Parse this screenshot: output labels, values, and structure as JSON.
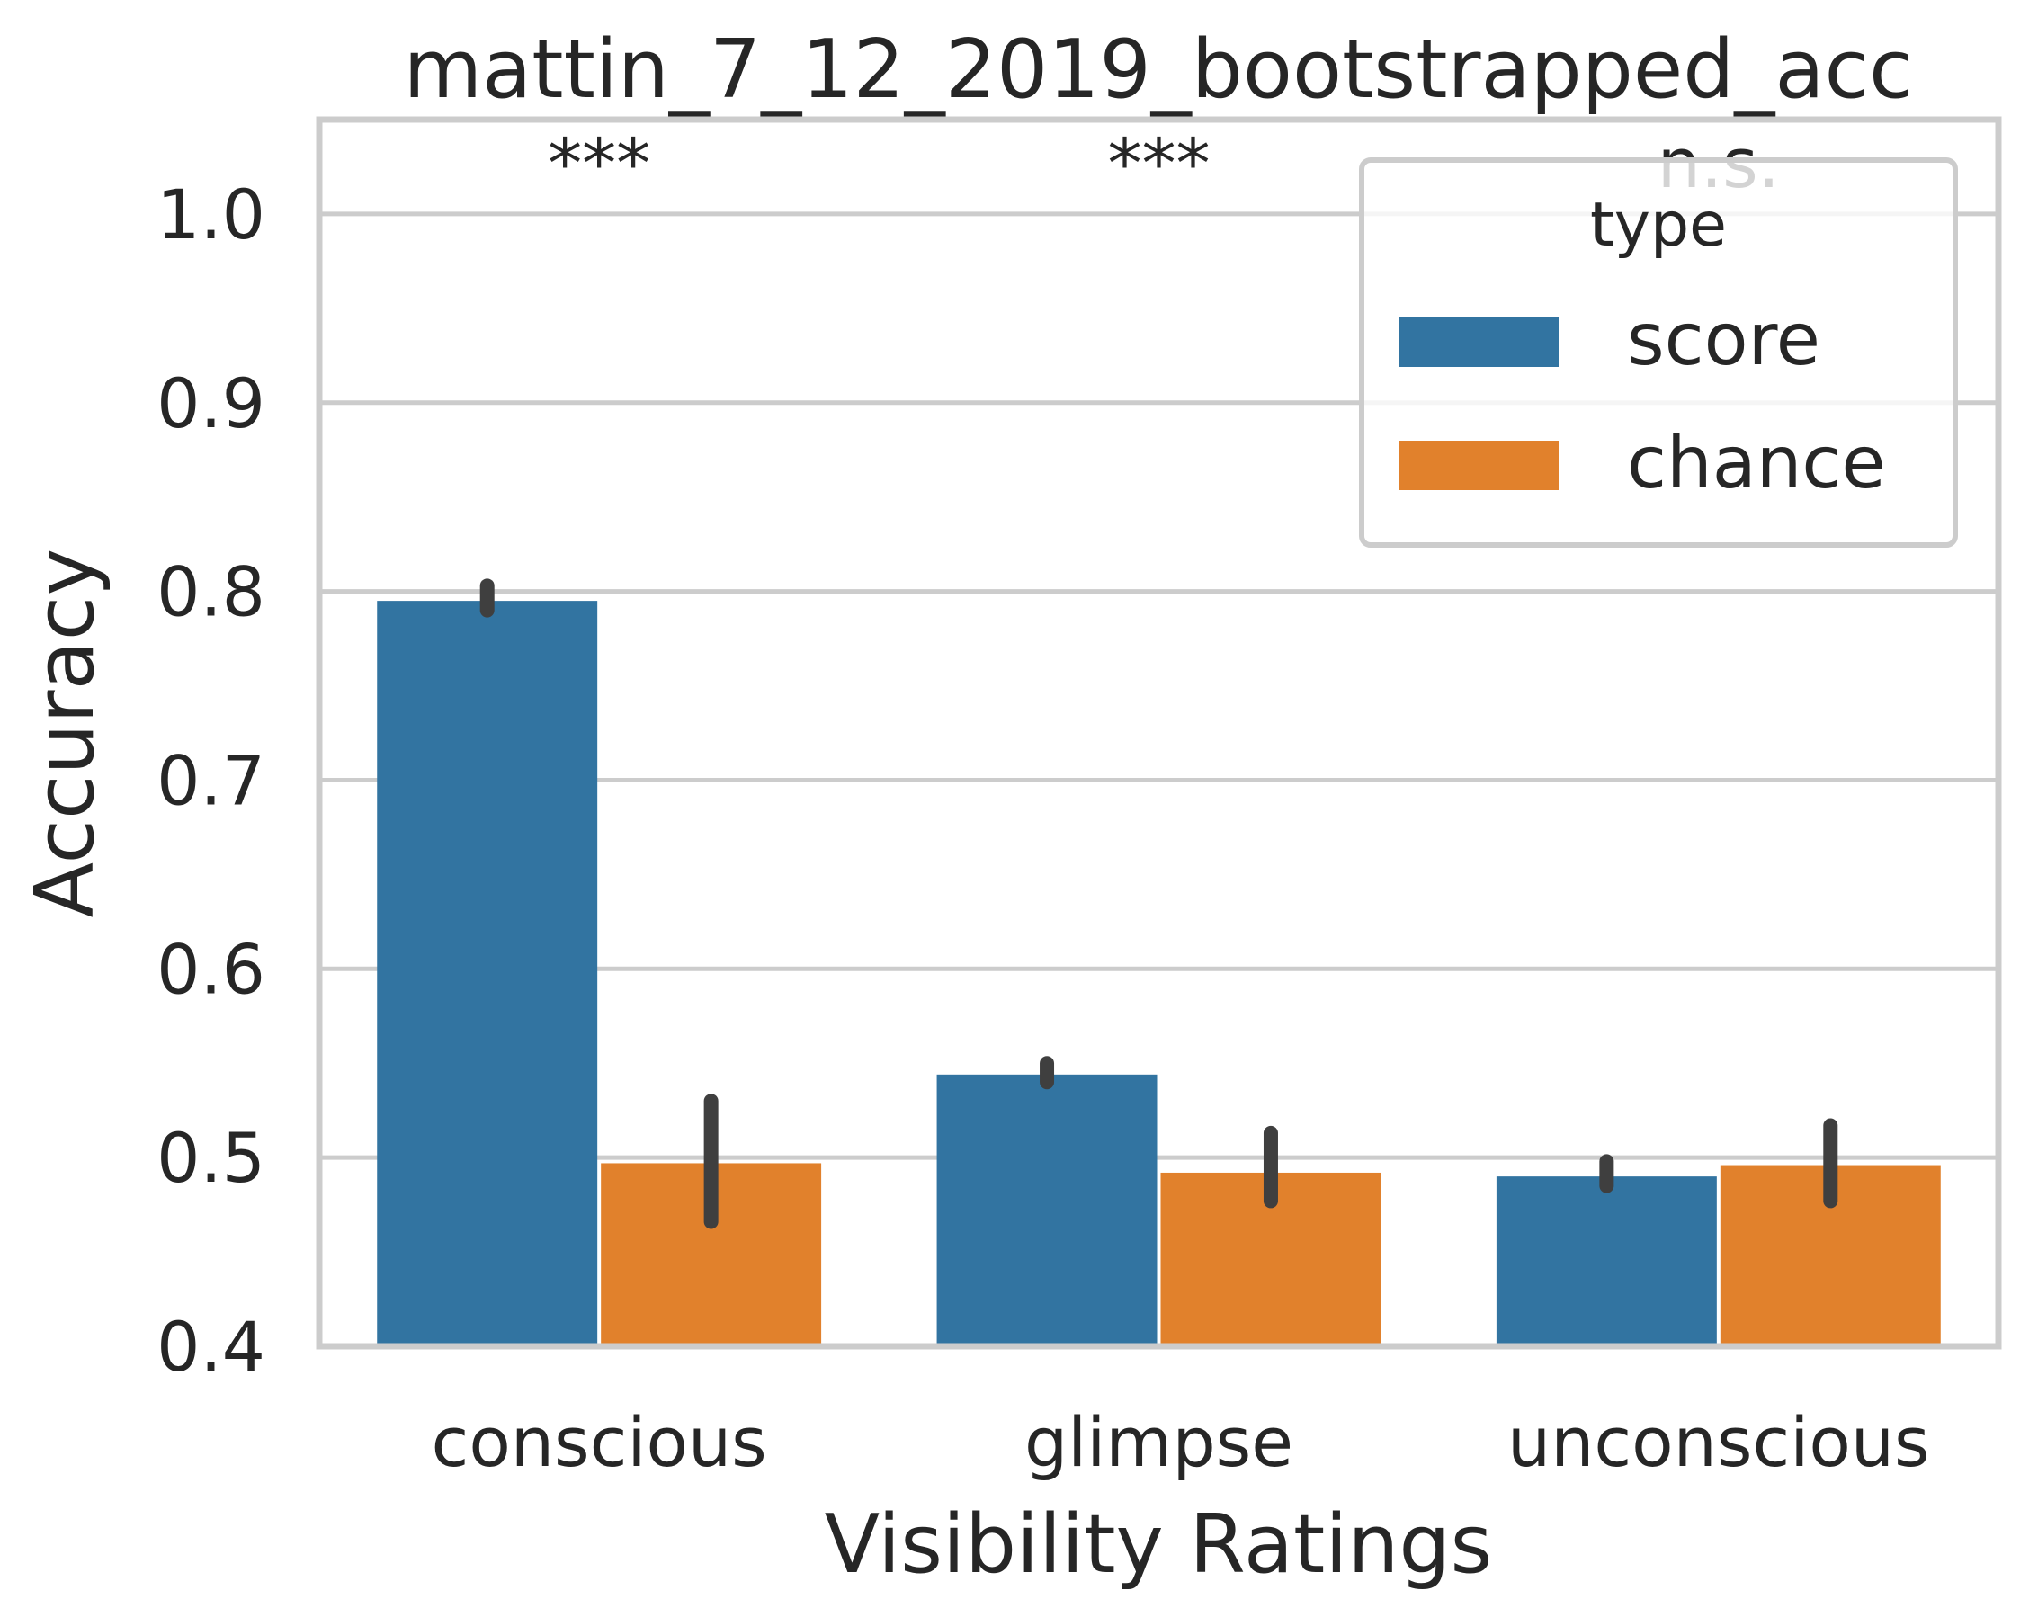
{
  "chart_data": {
    "type": "bar",
    "title": "mattin_7_12_2019_bootstrapped_acc",
    "xlabel": "Visibility Ratings",
    "ylabel": "Accuracy",
    "categories": [
      "conscious",
      "glimpse",
      "unconscious"
    ],
    "series": [
      {
        "name": "score",
        "values": [
          0.795,
          0.544,
          0.49
        ],
        "ci_low": [
          0.79,
          0.54,
          0.485
        ],
        "ci_high": [
          0.803,
          0.55,
          0.498
        ],
        "color": "#3274a1"
      },
      {
        "name": "chance",
        "values": [
          0.497,
          0.492,
          0.496
        ],
        "ci_low": [
          0.466,
          0.477,
          0.477
        ],
        "ci_high": [
          0.53,
          0.513,
          0.517
        ],
        "color": "#e1812c"
      }
    ],
    "significance": [
      "***",
      "***",
      "n.s."
    ],
    "ylim": [
      0.4,
      1.05
    ],
    "yticks": [
      "0.4",
      "0.5",
      "0.6",
      "0.7",
      "0.8",
      "0.9",
      "1.0"
    ],
    "grid": true,
    "legend": {
      "title": "type",
      "position": "upper right"
    },
    "errorbar_color": "#3f3f3f",
    "grid_color": "#cccccc"
  }
}
